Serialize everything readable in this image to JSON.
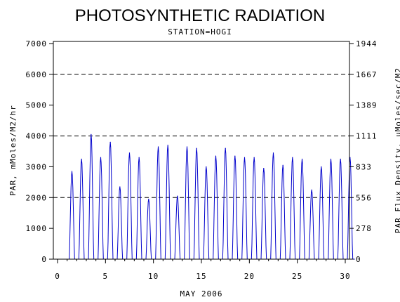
{
  "chart_data": {
    "type": "line",
    "title": "PHOTOSYNTHETIC RADIATION",
    "subtitle": "STATION=HOGI",
    "xlabel": "MAY 2006",
    "ylabel": "PAR, mMoles/M2/hr",
    "ylabel_right": "PAR Flux Density, uMoles/sec/M2",
    "xlim": [
      0,
      30
    ],
    "ylim": [
      0,
      7000
    ],
    "x_ticks": [
      0,
      5,
      10,
      15,
      20,
      25,
      30
    ],
    "y_ticks": [
      0,
      1000,
      2000,
      3000,
      4000,
      5000,
      6000,
      7000
    ],
    "y_ticks_right": [
      "0",
      "278",
      "556",
      "833",
      "1111",
      "1389",
      "1667",
      "1944"
    ],
    "gridlines_y": [
      2000,
      4000,
      6000
    ],
    "grid_style": "dashed",
    "line_color": "#0000cc",
    "daily_peaks": [
      {
        "day": 1,
        "peak": 2850
      },
      {
        "day": 2,
        "peak": 3250
      },
      {
        "day": 3,
        "peak": 4050
      },
      {
        "day": 4,
        "peak": 3300
      },
      {
        "day": 5,
        "peak": 3800
      },
      {
        "day": 6,
        "peak": 2350
      },
      {
        "day": 7,
        "peak": 3450
      },
      {
        "day": 8,
        "peak": 3300
      },
      {
        "day": 9,
        "peak": 1950
      },
      {
        "day": 10,
        "peak": 3650
      },
      {
        "day": 11,
        "peak": 3700
      },
      {
        "day": 12,
        "peak": 2050
      },
      {
        "day": 13,
        "peak": 3650
      },
      {
        "day": 14,
        "peak": 3600
      },
      {
        "day": 15,
        "peak": 3000
      },
      {
        "day": 16,
        "peak": 3350
      },
      {
        "day": 17,
        "peak": 3600
      },
      {
        "day": 18,
        "peak": 3350
      },
      {
        "day": 19,
        "peak": 3300
      },
      {
        "day": 20,
        "peak": 3300
      },
      {
        "day": 21,
        "peak": 2950
      },
      {
        "day": 22,
        "peak": 3450
      },
      {
        "day": 23,
        "peak": 3050
      },
      {
        "day": 24,
        "peak": 3300
      },
      {
        "day": 25,
        "peak": 3250
      },
      {
        "day": 26,
        "peak": 2250
      },
      {
        "day": 27,
        "peak": 3000
      },
      {
        "day": 28,
        "peak": 3250
      },
      {
        "day": 29,
        "peak": 3250
      },
      {
        "day": 30,
        "peak": 3300
      }
    ]
  }
}
